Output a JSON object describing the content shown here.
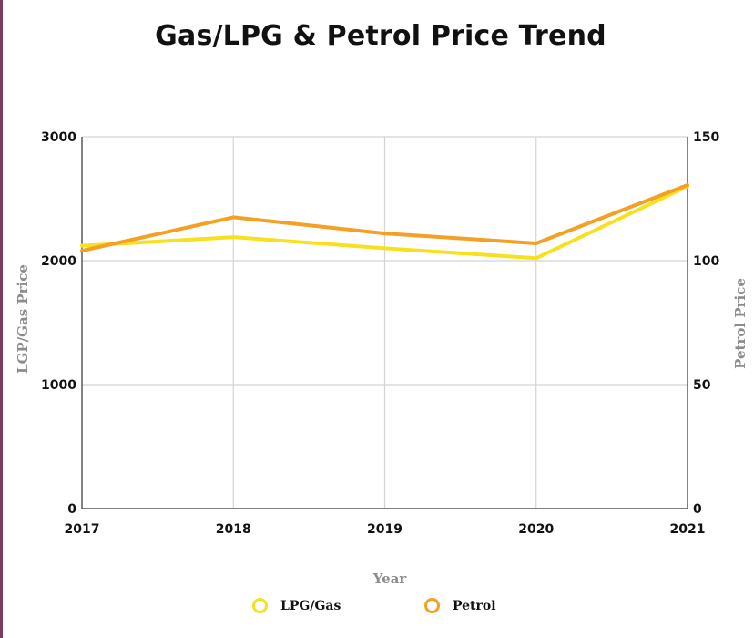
{
  "chart_data": {
    "type": "line",
    "title": "Gas/LPG & Petrol Price Trend",
    "categories": [
      "2017",
      "2018",
      "2019",
      "2020",
      "2021"
    ],
    "xlabel": "Year",
    "ylabel_left": "LGP/Gas Price",
    "ylabel_right": "Petrol Price",
    "ylim_left": [
      0,
      3000
    ],
    "ylim_right": [
      0,
      150
    ],
    "yticks_left": [
      "0",
      "1000",
      "2000",
      "3000"
    ],
    "yticks_right": [
      "0",
      "50",
      "100",
      "150"
    ],
    "grid": true,
    "legend_position": "bottom",
    "series": [
      {
        "name": "LPG/Gas",
        "axis": "left",
        "color": "#f7e11e",
        "values": [
          2120,
          2190,
          2100,
          2020,
          2600
        ]
      },
      {
        "name": "Petrol",
        "axis": "right",
        "color": "#f4a024",
        "values": [
          104,
          117.5,
          111,
          107,
          130.5
        ]
      }
    ]
  }
}
